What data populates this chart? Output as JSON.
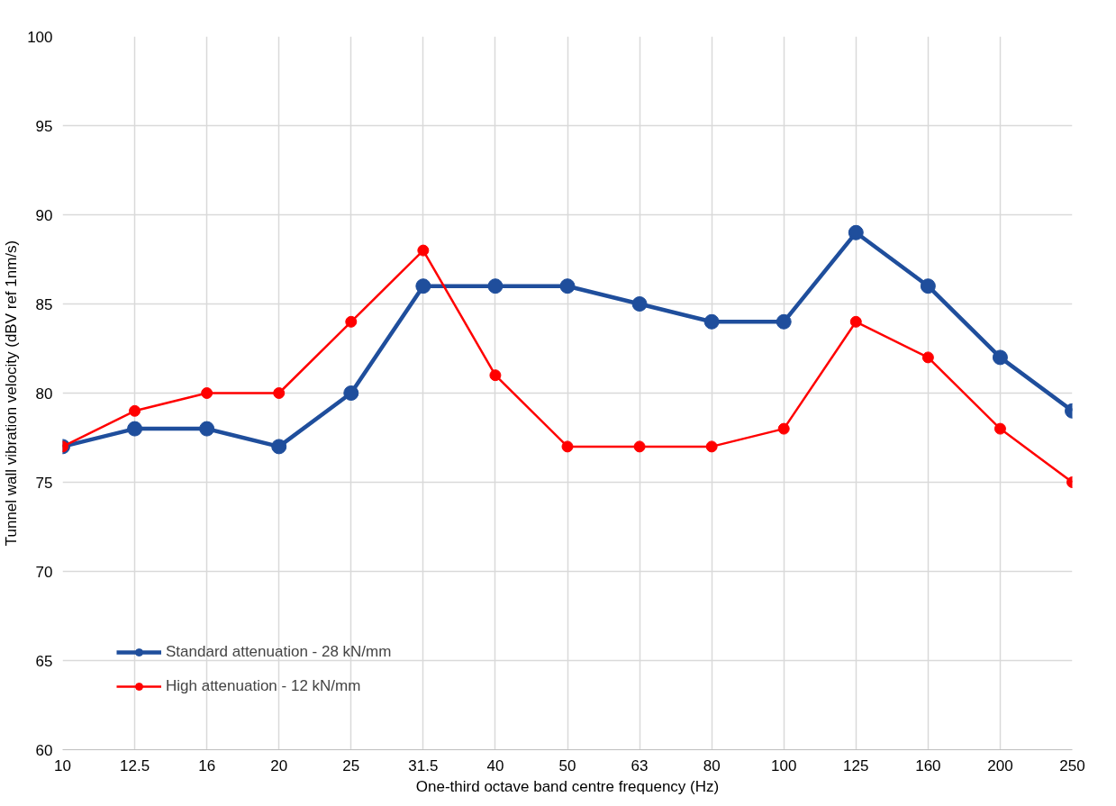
{
  "chart_data": {
    "type": "line",
    "xlabel": "One-third octave band centre frequency (Hz)",
    "ylabel": "Tunnel wall vibration velocity (dBV ref 1nm/s)",
    "categories": [
      "10",
      "12.5",
      "16",
      "20",
      "25",
      "31.5",
      "40",
      "50",
      "63",
      "80",
      "100",
      "125",
      "160",
      "200",
      "250"
    ],
    "series": [
      {
        "name": "Standard attenuation - 28 kN/mm",
        "color": "#1f4e9c",
        "values": [
          77,
          78,
          78,
          77,
          80,
          86,
          86,
          86,
          85,
          84,
          84,
          89,
          86,
          82,
          79
        ]
      },
      {
        "name": "High attenuation - 12 kN/mm",
        "color": "#ff0000",
        "values": [
          77,
          79,
          80,
          80,
          84,
          88,
          81,
          77,
          77,
          77,
          78,
          84,
          82,
          78,
          75
        ]
      }
    ],
    "ylim": [
      60,
      100
    ],
    "yticks": [
      60,
      65,
      70,
      75,
      80,
      85,
      90,
      95,
      100
    ],
    "grid": true,
    "legend": "bottom left",
    "marker": "circle",
    "line_style": "solid"
  }
}
